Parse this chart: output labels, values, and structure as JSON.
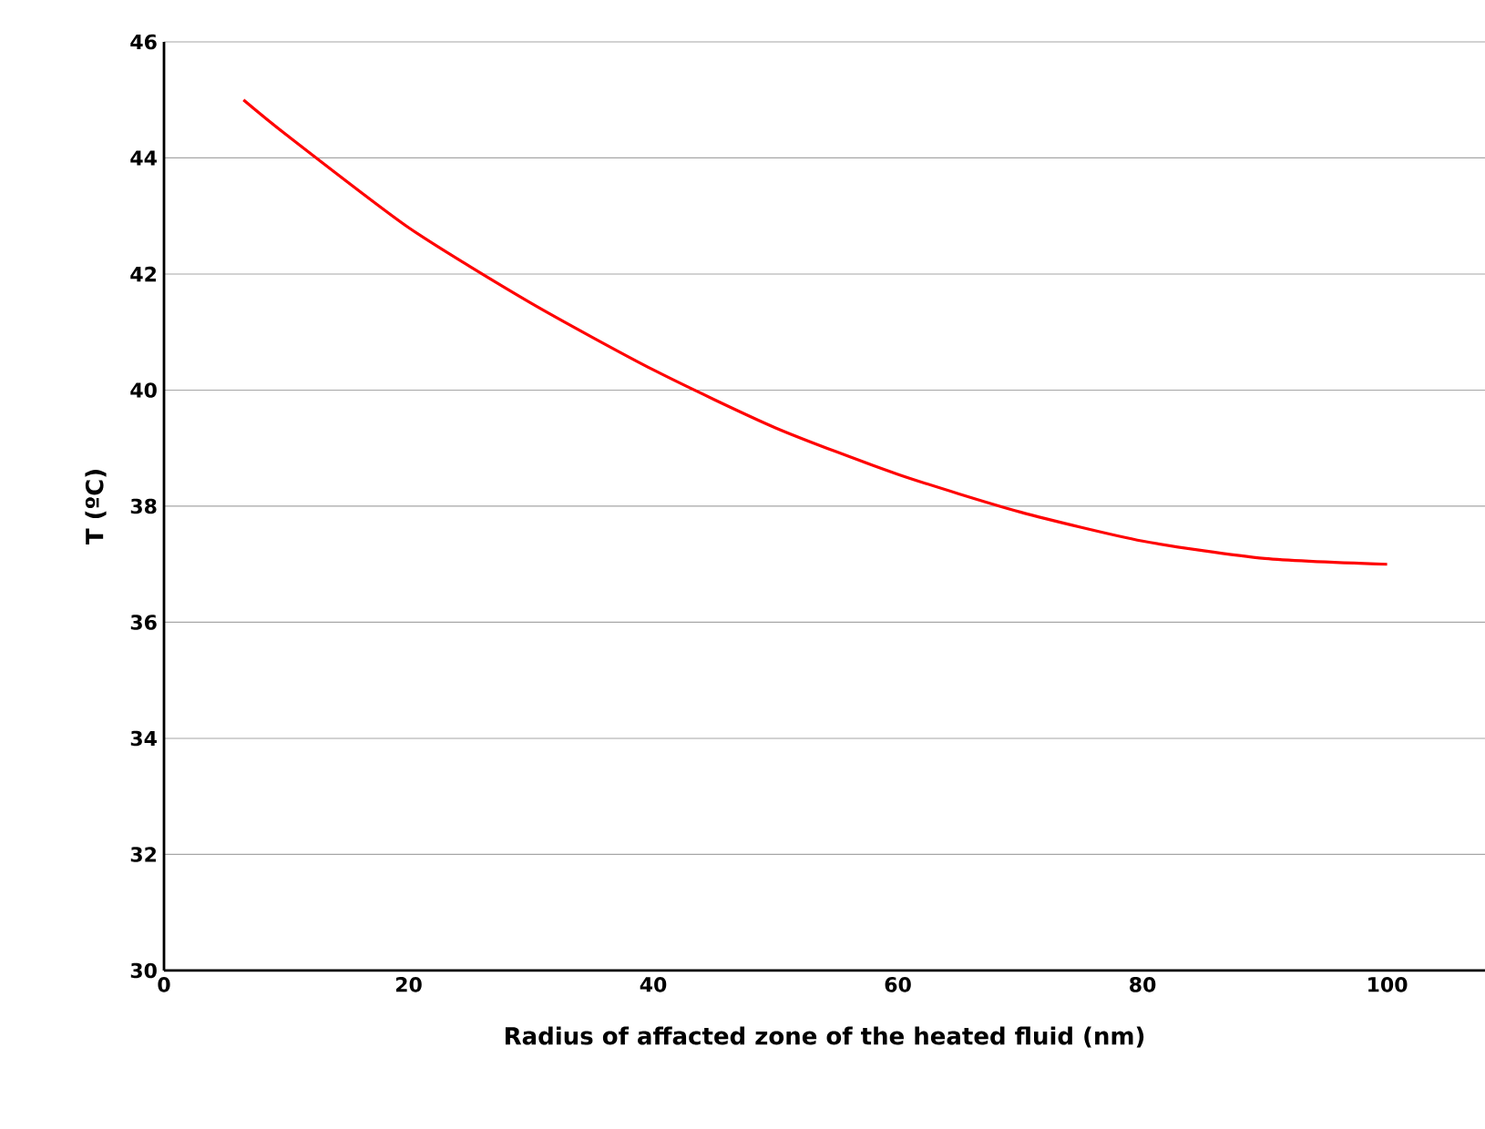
{
  "chart_data": {
    "type": "line",
    "xlabel": "Radius of affacted zone of the heated fluid (nm)",
    "ylabel": "T (ºC)",
    "x": [
      6.5,
      10,
      20,
      30,
      40,
      50,
      60,
      70,
      80,
      90,
      100
    ],
    "series": [
      {
        "color": "#ff0000",
        "values": [
          45,
          44.4,
          42.8,
          41.5,
          40.35,
          39.35,
          38.55,
          37.9,
          37.4,
          37.1,
          37.0
        ]
      }
    ],
    "xlim": [
      0,
      108
    ],
    "ylim": [
      30,
      46
    ],
    "xticks": [
      0,
      20,
      40,
      60,
      80,
      100
    ],
    "yticks": [
      30,
      32,
      34,
      36,
      38,
      40,
      42,
      44,
      46
    ],
    "grid": "y",
    "marker": "none",
    "line_style": "solid"
  }
}
